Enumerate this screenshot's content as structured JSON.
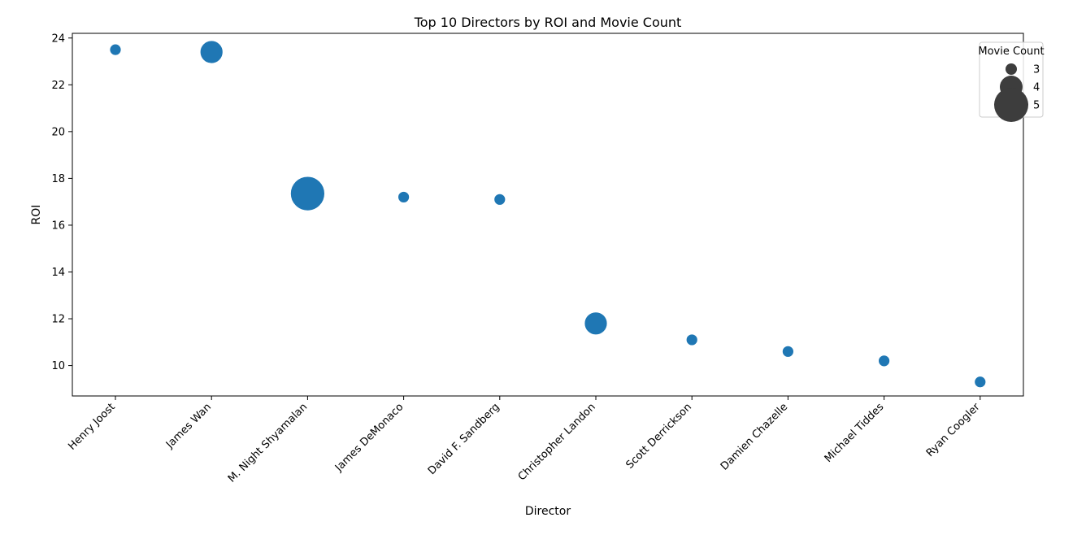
{
  "chart_data": {
    "type": "scatter",
    "title": "Top 10 Directors by ROI and Movie Count",
    "xlabel": "Director",
    "ylabel": "ROI",
    "ylim": [
      8.7,
      24.2
    ],
    "yticks": [
      10,
      12,
      14,
      16,
      18,
      20,
      22,
      24
    ],
    "grid": false,
    "point_color": "#1f77b4",
    "legend": {
      "title": "Movie Count",
      "placement": "top-right",
      "color": "#3d3d3d",
      "entries": [
        {
          "label": "3",
          "size_value": 3
        },
        {
          "label": "4",
          "size_value": 4
        },
        {
          "label": "5",
          "size_value": 5
        }
      ]
    },
    "categories": [
      "Henry Joost",
      "James Wan",
      "M. Night Shyamalan",
      "James DeMonaco",
      "David F. Sandberg",
      "Christopher Landon",
      "Scott Derrickson",
      "Damien Chazelle",
      "Michael Tiddes",
      "Ryan Coogler"
    ],
    "points": [
      {
        "x": "Henry Joost",
        "y": 23.5,
        "movie_count": 3
      },
      {
        "x": "James Wan",
        "y": 23.4,
        "movie_count": 4
      },
      {
        "x": "M. Night Shyamalan",
        "y": 17.35,
        "movie_count": 5
      },
      {
        "x": "James DeMonaco",
        "y": 17.2,
        "movie_count": 3
      },
      {
        "x": "David F. Sandberg",
        "y": 17.1,
        "movie_count": 3
      },
      {
        "x": "Christopher Landon",
        "y": 11.8,
        "movie_count": 4
      },
      {
        "x": "Scott Derrickson",
        "y": 11.1,
        "movie_count": 3
      },
      {
        "x": "Damien Chazelle",
        "y": 10.6,
        "movie_count": 3
      },
      {
        "x": "Michael Tiddes",
        "y": 10.2,
        "movie_count": 3
      },
      {
        "x": "Ryan Coogler",
        "y": 9.3,
        "movie_count": 3
      }
    ]
  }
}
